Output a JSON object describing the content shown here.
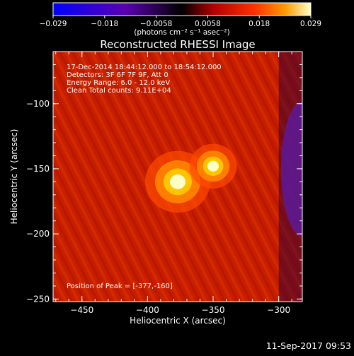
{
  "colorbar": {
    "ticks": [
      "-0.029",
      "-0.018",
      "-0.0058",
      "0.0058",
      "0.018",
      "0.029"
    ],
    "unit_label": "(photons cm⁻² s⁻¹ asec⁻²)",
    "colors": [
      "#0000ff",
      "#5a00b0",
      "#000000",
      "#b00000",
      "#ff3000",
      "#ff9a00",
      "#ffffc8"
    ]
  },
  "chart_data": {
    "type": "heatmap",
    "title": "Reconstructed RHESSI Image",
    "xlabel": "Heliocentric X (arcsec)",
    "ylabel": "Heliocentric Y (arcsec)",
    "xlim": [
      -472,
      -282
    ],
    "ylim": [
      -252,
      -60
    ],
    "xticks": [
      -450,
      -400,
      -350,
      -300
    ],
    "yticks": [
      -100,
      -150,
      -200,
      -250
    ],
    "xtick_labels": [
      "-450",
      "-400",
      "-350",
      "-300"
    ],
    "ytick_labels": [
      "-100",
      "-150",
      "-200",
      "-250"
    ],
    "colorscale_range": [
      -0.029,
      0.029
    ],
    "peak": [
      -377,
      -160
    ],
    "sources": [
      {
        "x": -377,
        "y": -160,
        "value": 0.029
      },
      {
        "x": -350,
        "y": -148,
        "value": 0.021
      }
    ],
    "info_lines": [
      "17-Dec-2014 18:44:12.000 to 18:54:12.000",
      "Detectors: 3F 6F 7F 9F, Att 0",
      "Energy Range: 6.0 - 12.0 keV",
      "Clean     Total counts: 9.11E+04"
    ],
    "peak_label": "Position of Peak = [-377,-160]"
  },
  "timestamp": "11-Sep-2017 09:53"
}
